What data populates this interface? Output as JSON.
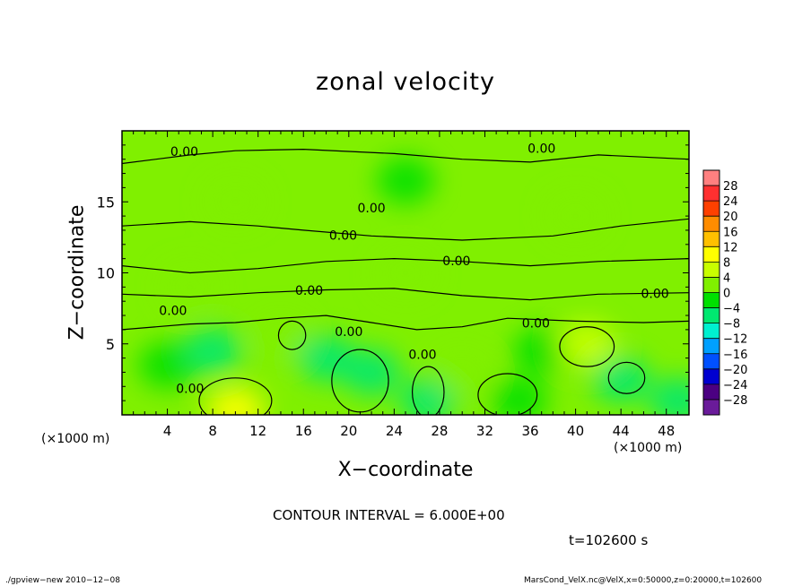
{
  "title": "zonal velocity",
  "xlabel": "X−coordinate",
  "ylabel": "Z−coordinate",
  "x_unit_left": "(×1000 m)",
  "x_unit_right": "(×1000 m)",
  "contour_interval_text": "CONTOUR INTERVAL = 6.000E+00",
  "time_text": "t=102600 s",
  "footer_left": "./gpview−new  2010−12−08",
  "footer_right": "MarsCond_VelX.nc@VelX,x=0:50000,z=0:20000,t=102600",
  "chart_data": {
    "type": "heatmap",
    "title": "zonal velocity",
    "xlabel": "X−coordinate",
    "ylabel": "Z−coordinate",
    "x_unit": "×1000 m",
    "xlim": [
      0,
      50
    ],
    "ylim": [
      0,
      20
    ],
    "x_ticks": [
      4,
      8,
      12,
      16,
      20,
      24,
      28,
      32,
      36,
      40,
      44,
      48
    ],
    "y_ticks": [
      5,
      10,
      15
    ],
    "contour_interval": 6,
    "contour_labels": [
      {
        "text": "0.00",
        "x": 5.5,
        "z": 18.5
      },
      {
        "text": "0.00",
        "x": 37.0,
        "z": 18.7
      },
      {
        "text": "0.00",
        "x": 22.0,
        "z": 14.5
      },
      {
        "text": "0.00",
        "x": 19.5,
        "z": 12.6
      },
      {
        "text": "0.00",
        "x": 29.5,
        "z": 10.8
      },
      {
        "text": "0.00",
        "x": 16.5,
        "z": 8.7
      },
      {
        "text": "0.00",
        "x": 47.0,
        "z": 8.5
      },
      {
        "text": "0.00",
        "x": 4.5,
        "z": 7.3
      },
      {
        "text": "0.00",
        "x": 20.0,
        "z": 5.8
      },
      {
        "text": "0.00",
        "x": 36.5,
        "z": 6.4
      },
      {
        "text": "0.00",
        "x": 26.5,
        "z": 4.2
      },
      {
        "text": "0.00",
        "x": 6.0,
        "z": 1.8
      }
    ],
    "colorbar": {
      "levels": [
        28,
        24,
        20,
        16,
        12,
        8,
        4,
        0,
        -4,
        -8,
        -12,
        -16,
        -20,
        -24,
        -28
      ],
      "colors": [
        "#ff8080",
        "#ff3030",
        "#ff4000",
        "#ff8c00",
        "#ffc000",
        "#ffff00",
        "#c8ff00",
        "#80f000",
        "#00e000",
        "#00e870",
        "#00f0d0",
        "#00a0ff",
        "#0050ff",
        "#0000d0",
        "#4b0082",
        "#6a1b9a"
      ]
    },
    "field_values": [
      {
        "x": 10,
        "z": 0.3,
        "value": 9
      },
      {
        "x": 4,
        "z": 3.5,
        "value": -3
      },
      {
        "x": 8,
        "z": 4.5,
        "value": -6
      },
      {
        "x": 14,
        "z": 5.5,
        "value": 3
      },
      {
        "x": 18,
        "z": 4,
        "value": -5
      },
      {
        "x": 22,
        "z": 3,
        "value": -6
      },
      {
        "x": 27,
        "z": 1,
        "value": -5
      },
      {
        "x": 30,
        "z": 3,
        "value": 3
      },
      {
        "x": 35,
        "z": 1,
        "value": -3
      },
      {
        "x": 37,
        "z": 4.5,
        "value": -4
      },
      {
        "x": 41,
        "z": 5,
        "value": 6
      },
      {
        "x": 44,
        "z": 2.5,
        "value": -5
      },
      {
        "x": 49,
        "z": 1,
        "value": -6
      },
      {
        "x": 6,
        "z": 9,
        "value": 2
      },
      {
        "x": 25,
        "z": 10,
        "value": 3
      },
      {
        "x": 25,
        "z": 16.5,
        "value": -2
      },
      {
        "x": 40,
        "z": 14,
        "value": 1
      },
      {
        "x": 10,
        "z": 15,
        "value": 2
      }
    ]
  }
}
